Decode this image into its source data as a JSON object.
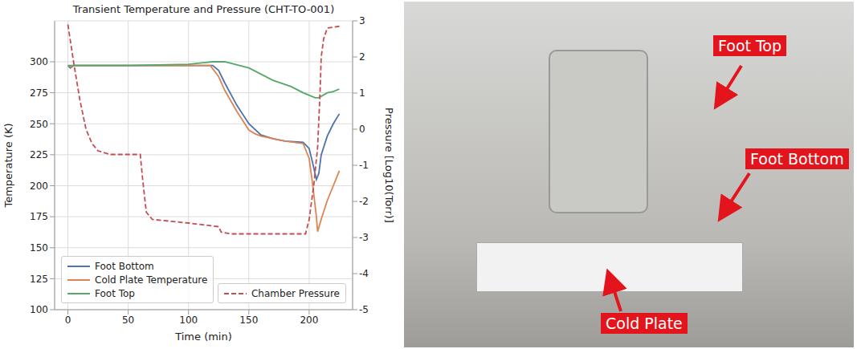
{
  "chart_data": {
    "type": "line",
    "title": "Transient Temperature and Pressure (CHT-TO-001)",
    "x_label": "Time (min)",
    "y_label": "Temperature (K)",
    "y2_label": "Pressure [Log10(Torr)]",
    "xlim": [
      -11,
      236
    ],
    "xticks": [
      0,
      50,
      100,
      150,
      200
    ],
    "ylim": [
      100,
      333
    ],
    "yticks": [
      100,
      125,
      150,
      175,
      200,
      225,
      250,
      275,
      300
    ],
    "y2lim": [
      -5,
      3
    ],
    "y2ticks": [
      -5,
      -4,
      -3,
      -2,
      -1,
      0,
      1,
      2,
      3
    ],
    "grid": true,
    "legend": "lower left",
    "series": [
      {
        "name": "Foot Bottom",
        "color": "#4c72b0",
        "line_style": "solid",
        "x": [
          0,
          2,
          5,
          60,
          120,
          125,
          130,
          140,
          150,
          160,
          170,
          180,
          195,
          200,
          203,
          206,
          208,
          210,
          215,
          220,
          225
        ],
        "values": [
          297,
          295,
          297,
          297,
          297,
          293,
          283,
          265,
          250,
          241,
          238,
          236,
          235,
          230,
          218,
          205,
          210,
          225,
          240,
          250,
          258
        ]
      },
      {
        "name": "Cold Plate Temperature",
        "color": "#dd8452",
        "line_style": "solid",
        "x": [
          0,
          2,
          5,
          60,
          118,
          125,
          130,
          140,
          150,
          155,
          160,
          180,
          195,
          200,
          203,
          206,
          207,
          210,
          215,
          220,
          225
        ],
        "values": [
          297,
          296,
          297,
          297,
          297,
          288,
          277,
          260,
          245,
          242,
          240,
          236,
          234,
          222,
          200,
          175,
          163,
          173,
          188,
          200,
          212
        ]
      },
      {
        "name": "Foot Top",
        "color": "#55a868",
        "line_style": "solid",
        "x": [
          0,
          50,
          100,
          120,
          130,
          150,
          170,
          185,
          195,
          205,
          208,
          215,
          220,
          225
        ],
        "values": [
          297,
          297,
          298,
          300,
          300,
          295,
          285,
          280,
          275,
          271,
          271,
          275,
          276,
          278
        ]
      },
      {
        "name": "Chamber Pressure",
        "color": "#c44e52",
        "line_style": "dashed",
        "axis": "y2",
        "x": [
          0,
          5,
          10,
          15,
          20,
          25,
          35,
          60,
          62,
          65,
          70,
          100,
          125,
          127,
          135,
          197,
          200,
          204,
          207,
          209,
          210,
          212,
          215,
          225
        ],
        "values": [
          2.9,
          1.8,
          0.8,
          0,
          -0.4,
          -0.6,
          -0.7,
          -0.7,
          -1.4,
          -2.3,
          -2.5,
          -2.6,
          -2.7,
          -2.85,
          -2.9,
          -2.9,
          -2.5,
          -1.5,
          -0.5,
          1.0,
          2.0,
          2.5,
          2.8,
          2.85
        ]
      }
    ]
  },
  "photo": {
    "labels": [
      "Foot Top",
      "Foot Bottom",
      "Cold Plate"
    ]
  }
}
